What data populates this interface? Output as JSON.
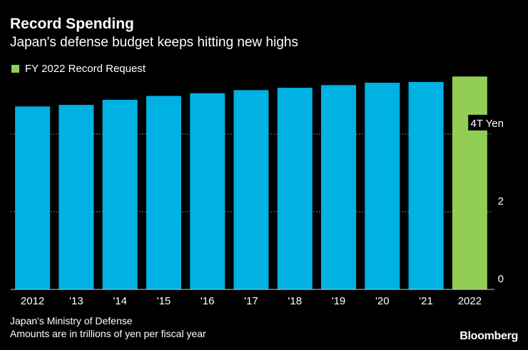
{
  "header": {
    "title": "Record Spending",
    "subtitle": "Japan's defense budget keeps hitting new highs"
  },
  "legend": {
    "label": "FY 2022 Record Request",
    "color": "#92cd55"
  },
  "footer": {
    "source": "Japan's Ministry of Defense",
    "note": "Amounts are in trillions of yen per fiscal year",
    "brand": "Bloomberg"
  },
  "colors": {
    "regular": "#00b1e3",
    "highlight": "#92cd55",
    "grid": "#7a7a7a"
  },
  "chart_data": {
    "type": "bar",
    "title": "Record Spending",
    "subtitle": "Japan's defense budget keeps hitting new highs",
    "categories": [
      "2012",
      "'13",
      "'14",
      "'15",
      "'16",
      "'17",
      "'18",
      "'19",
      "'20",
      "'21",
      "2022"
    ],
    "values": [
      4.71,
      4.75,
      4.88,
      4.98,
      5.05,
      5.13,
      5.19,
      5.26,
      5.32,
      5.34,
      5.48
    ],
    "highlight_index": 10,
    "highlight_label": "FY 2022 Record Request",
    "ylim": [
      0,
      6
    ],
    "yticks": [
      0,
      2,
      4
    ],
    "ytick_labels": [
      "0",
      "2",
      "4T Yen"
    ],
    "ylabel": "",
    "xlabel": "",
    "grid": true,
    "legend_position": "top-left"
  }
}
